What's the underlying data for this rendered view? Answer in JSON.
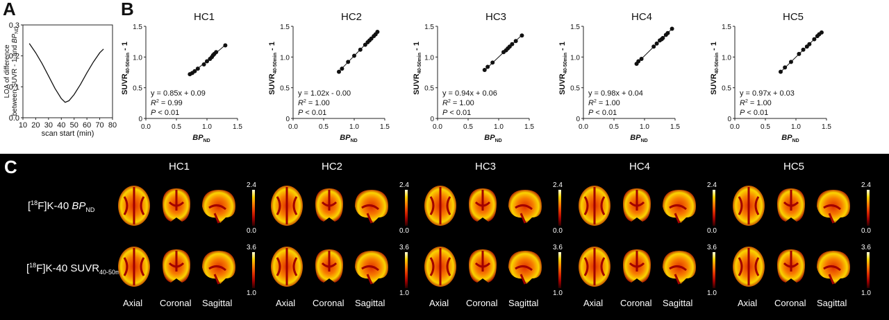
{
  "panel_labels": {
    "a": "A",
    "b": "B",
    "c": "C"
  },
  "chart_data": [
    {
      "type": "line",
      "panel": "A",
      "xlabel": "scan start (min)",
      "ylabel_line1": "LOA of difference",
      "ylabel_line2_prefix": "between SUVR - 1 and ",
      "ylabel_line2_italic": "BP",
      "ylabel_line2_sub": "ND",
      "xlim": [
        10,
        80
      ],
      "ylim": [
        0,
        0.3
      ],
      "xticks": [
        "10",
        "20",
        "30",
        "40",
        "50",
        "60",
        "70",
        "80"
      ],
      "yticks": [
        "0.0",
        "0.1",
        "0.2",
        "0.3"
      ],
      "x": [
        15,
        20,
        25,
        30,
        35,
        40,
        43,
        46,
        50,
        55,
        60,
        65,
        70,
        73
      ],
      "y": [
        0.24,
        0.21,
        0.175,
        0.135,
        0.095,
        0.062,
        0.05,
        0.055,
        0.075,
        0.108,
        0.145,
        0.18,
        0.21,
        0.222
      ]
    },
    {
      "type": "scatter",
      "panel": "B",
      "title": "HC1",
      "xlabel_italic": "BP",
      "xlabel_sub": "ND",
      "ylabel_main": "SUVR",
      "ylabel_sub": "40-50min",
      "ylabel_tail": " - 1",
      "xlim": [
        0,
        1.5
      ],
      "ylim": [
        0,
        1.5
      ],
      "xticks": [
        "0.0",
        "0.5",
        "1.0",
        "1.5"
      ],
      "yticks": [
        "0",
        "0.5",
        "1.0",
        "1.5"
      ],
      "x": [
        0.72,
        0.76,
        0.8,
        0.85,
        0.95,
        1.0,
        1.05,
        1.08,
        1.1,
        1.12,
        1.15,
        1.3
      ],
      "y": [
        0.72,
        0.74,
        0.77,
        0.81,
        0.88,
        0.93,
        0.97,
        1.0,
        1.03,
        1.05,
        1.08,
        1.19
      ],
      "fit": {
        "slope": 0.85,
        "intercept": 0.09
      },
      "eq": "y = 0.85x + 0.09",
      "r2_label": "R",
      "r2_sup": "2",
      "r2_val": " = 0.99",
      "p_label": "P",
      "p_val": " < 0.01"
    },
    {
      "type": "scatter",
      "panel": "B",
      "title": "HC2",
      "xlabel_italic": "BP",
      "xlabel_sub": "ND",
      "ylabel_main": "SUVR",
      "ylabel_sub": "40-50min",
      "ylabel_tail": " - 1",
      "xlim": [
        0,
        1.5
      ],
      "ylim": [
        0,
        1.5
      ],
      "xticks": [
        "0.0",
        "0.5",
        "1.0",
        "1.5"
      ],
      "yticks": [
        "0",
        "0.5",
        "1.0",
        "1.5"
      ],
      "x": [
        0.75,
        0.8,
        0.9,
        1.0,
        1.1,
        1.18,
        1.22,
        1.25,
        1.28,
        1.32,
        1.35,
        1.38
      ],
      "y": [
        0.76,
        0.81,
        0.92,
        1.02,
        1.12,
        1.2,
        1.24,
        1.27,
        1.3,
        1.34,
        1.37,
        1.41
      ],
      "fit": {
        "slope": 1.02,
        "intercept": 0.0
      },
      "eq": "y = 1.02x - 0.00",
      "r2_label": "R",
      "r2_sup": "2",
      "r2_val": " = 1.00",
      "p_label": "P",
      "p_val": " < 0.01"
    },
    {
      "type": "scatter",
      "panel": "B",
      "title": "HC3",
      "xlabel_italic": "BP",
      "xlabel_sub": "ND",
      "ylabel_main": "SUVR",
      "ylabel_sub": "40-50min",
      "ylabel_tail": " - 1",
      "xlim": [
        0,
        1.5
      ],
      "ylim": [
        0,
        1.5
      ],
      "xticks": [
        "0.0",
        "0.5",
        "1.0",
        "1.5"
      ],
      "yticks": [
        "0",
        "0.5",
        "1.0",
        "1.5"
      ],
      "x": [
        0.77,
        0.82,
        0.9,
        1.08,
        1.12,
        1.15,
        1.18,
        1.22,
        1.28,
        1.38
      ],
      "y": [
        0.79,
        0.84,
        0.91,
        1.08,
        1.11,
        1.14,
        1.17,
        1.21,
        1.26,
        1.35
      ],
      "fit": {
        "slope": 0.94,
        "intercept": 0.06
      },
      "eq": "y = 0.94x + 0.06",
      "r2_label": "R",
      "r2_sup": "2",
      "r2_val": " = 1.00",
      "p_label": "P",
      "p_val": " < 0.01"
    },
    {
      "type": "scatter",
      "panel": "B",
      "title": "HC4",
      "xlabel_italic": "BP",
      "xlabel_sub": "ND",
      "ylabel_main": "SUVR",
      "ylabel_sub": "40-50min",
      "ylabel_tail": " - 1",
      "xlim": [
        0,
        1.5
      ],
      "ylim": [
        0,
        1.5
      ],
      "xticks": [
        "0.0",
        "0.5",
        "1.0",
        "1.5"
      ],
      "yticks": [
        "0",
        "0.5",
        "1.0",
        "1.5"
      ],
      "x": [
        0.87,
        0.9,
        0.95,
        1.15,
        1.2,
        1.25,
        1.28,
        1.3,
        1.35,
        1.38,
        1.45
      ],
      "y": [
        0.89,
        0.93,
        0.97,
        1.17,
        1.22,
        1.27,
        1.29,
        1.31,
        1.36,
        1.39,
        1.46
      ],
      "fit": {
        "slope": 0.98,
        "intercept": 0.04
      },
      "eq": "y = 0.98x + 0.04",
      "r2_label": "R",
      "r2_sup": "2",
      "r2_val": " = 1.00",
      "p_label": "P",
      "p_val": " < 0.01"
    },
    {
      "type": "scatter",
      "panel": "B",
      "title": "HC5",
      "xlabel_italic": "BP",
      "xlabel_sub": "ND",
      "ylabel_main": "SUVR",
      "ylabel_sub": "40-50min",
      "ylabel_tail": " - 1",
      "xlim": [
        0,
        1.5
      ],
      "ylim": [
        0,
        1.5
      ],
      "xticks": [
        "0.0",
        "0.5",
        "1.0",
        "1.5"
      ],
      "yticks": [
        "0",
        "0.5",
        "1.0",
        "1.5"
      ],
      "x": [
        0.75,
        0.82,
        0.92,
        1.05,
        1.12,
        1.18,
        1.22,
        1.3,
        1.35,
        1.38,
        1.42
      ],
      "y": [
        0.76,
        0.83,
        0.92,
        1.05,
        1.12,
        1.17,
        1.21,
        1.29,
        1.34,
        1.37,
        1.4
      ],
      "fit": {
        "slope": 0.97,
        "intercept": 0.03
      },
      "eq": "y = 0.97x + 0.03",
      "r2_label": "R",
      "r2_sup": "2",
      "r2_val": " = 1.00",
      "p_label": "P",
      "p_val": " < 0.01"
    }
  ],
  "panel_c": {
    "subjects": [
      "HC1",
      "HC2",
      "HC3",
      "HC4",
      "HC5"
    ],
    "row1": {
      "sup": "18",
      "prefix": "F]K-40 ",
      "italic": "BP",
      "sub": "ND",
      "open": "["
    },
    "row2": {
      "sup": "18",
      "prefix": "F]K-40 SUVR",
      "sub": "40-50min",
      "open": "["
    },
    "views": [
      "Axial",
      "Coronal",
      "Sagittal"
    ],
    "scale_row1": {
      "max": "2.4",
      "min": "0.0"
    },
    "scale_row2": {
      "max": "3.6",
      "min": "1.0"
    },
    "colormap_colors": [
      "#2a0000",
      "#a10000",
      "#e03000",
      "#f77d00",
      "#fbd400",
      "#fffde0"
    ]
  }
}
